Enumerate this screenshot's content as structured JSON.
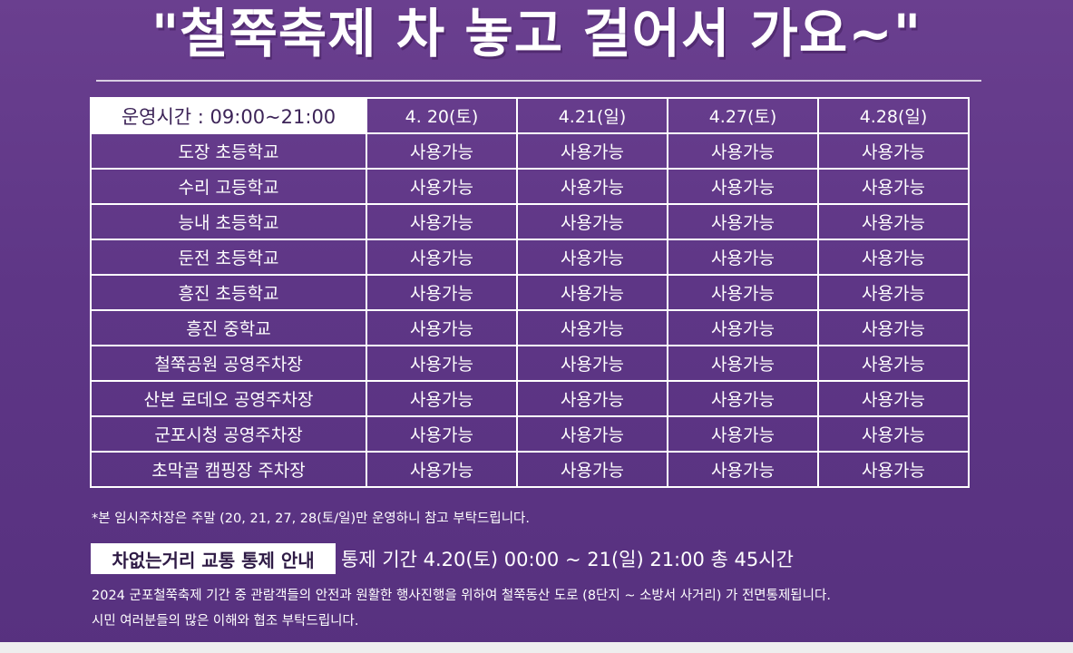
{
  "title": "\"철쭉축제 차 놓고 걸어서 가요~\"",
  "schedule": {
    "hours_label": "운영시간 : 09:00~21:00",
    "dates": [
      "4. 20(토)",
      "4.21(일)",
      "4.27(토)",
      "4.28(일)"
    ],
    "rows": [
      {
        "place": "도장 초등학교",
        "status": [
          "사용가능",
          "사용가능",
          "사용가능",
          "사용가능"
        ]
      },
      {
        "place": "수리 고등학교",
        "status": [
          "사용가능",
          "사용가능",
          "사용가능",
          "사용가능"
        ]
      },
      {
        "place": "능내 초등학교",
        "status": [
          "사용가능",
          "사용가능",
          "사용가능",
          "사용가능"
        ]
      },
      {
        "place": "둔전 초등학교",
        "status": [
          "사용가능",
          "사용가능",
          "사용가능",
          "사용가능"
        ]
      },
      {
        "place": "흥진 초등학교",
        "status": [
          "사용가능",
          "사용가능",
          "사용가능",
          "사용가능"
        ]
      },
      {
        "place": "흥진 중학교",
        "status": [
          "사용가능",
          "사용가능",
          "사용가능",
          "사용가능"
        ]
      },
      {
        "place": "철쭉공원 공영주차장",
        "status": [
          "사용가능",
          "사용가능",
          "사용가능",
          "사용가능"
        ]
      },
      {
        "place": "산본 로데오 공영주차장",
        "status": [
          "사용가능",
          "사용가능",
          "사용가능",
          "사용가능"
        ]
      },
      {
        "place": "군포시청 공영주차장",
        "status": [
          "사용가능",
          "사용가능",
          "사용가능",
          "사용가능"
        ]
      },
      {
        "place": "초막골 캠핑장 주차장",
        "status": [
          "사용가능",
          "사용가능",
          "사용가능",
          "사용가능"
        ]
      }
    ]
  },
  "note": "*본 임시주차장은 주말 (20, 21, 27, 28(토/일)만 운영하니 참고 부탁드립니다.",
  "traffic": {
    "badge": "차없는거리 교통 통제 안내",
    "period": "통제 기간 4.20(토) 00:00 ~ 21(일) 21:00 총 45시간",
    "desc_line1": "2024 군포철쭉축제 기간 중 관람객들의 안전과 원활한 행사진행을 위하여 철쭉동산 도로 (8단지 ~ 소방서 사거리) 가 전면통제됩니다.",
    "desc_line2": "시민 여러분들의 많은 이해와 협조 부탁드립니다."
  },
  "colors": {
    "background": "#5e3686",
    "badge_text": "#2e1a45"
  }
}
